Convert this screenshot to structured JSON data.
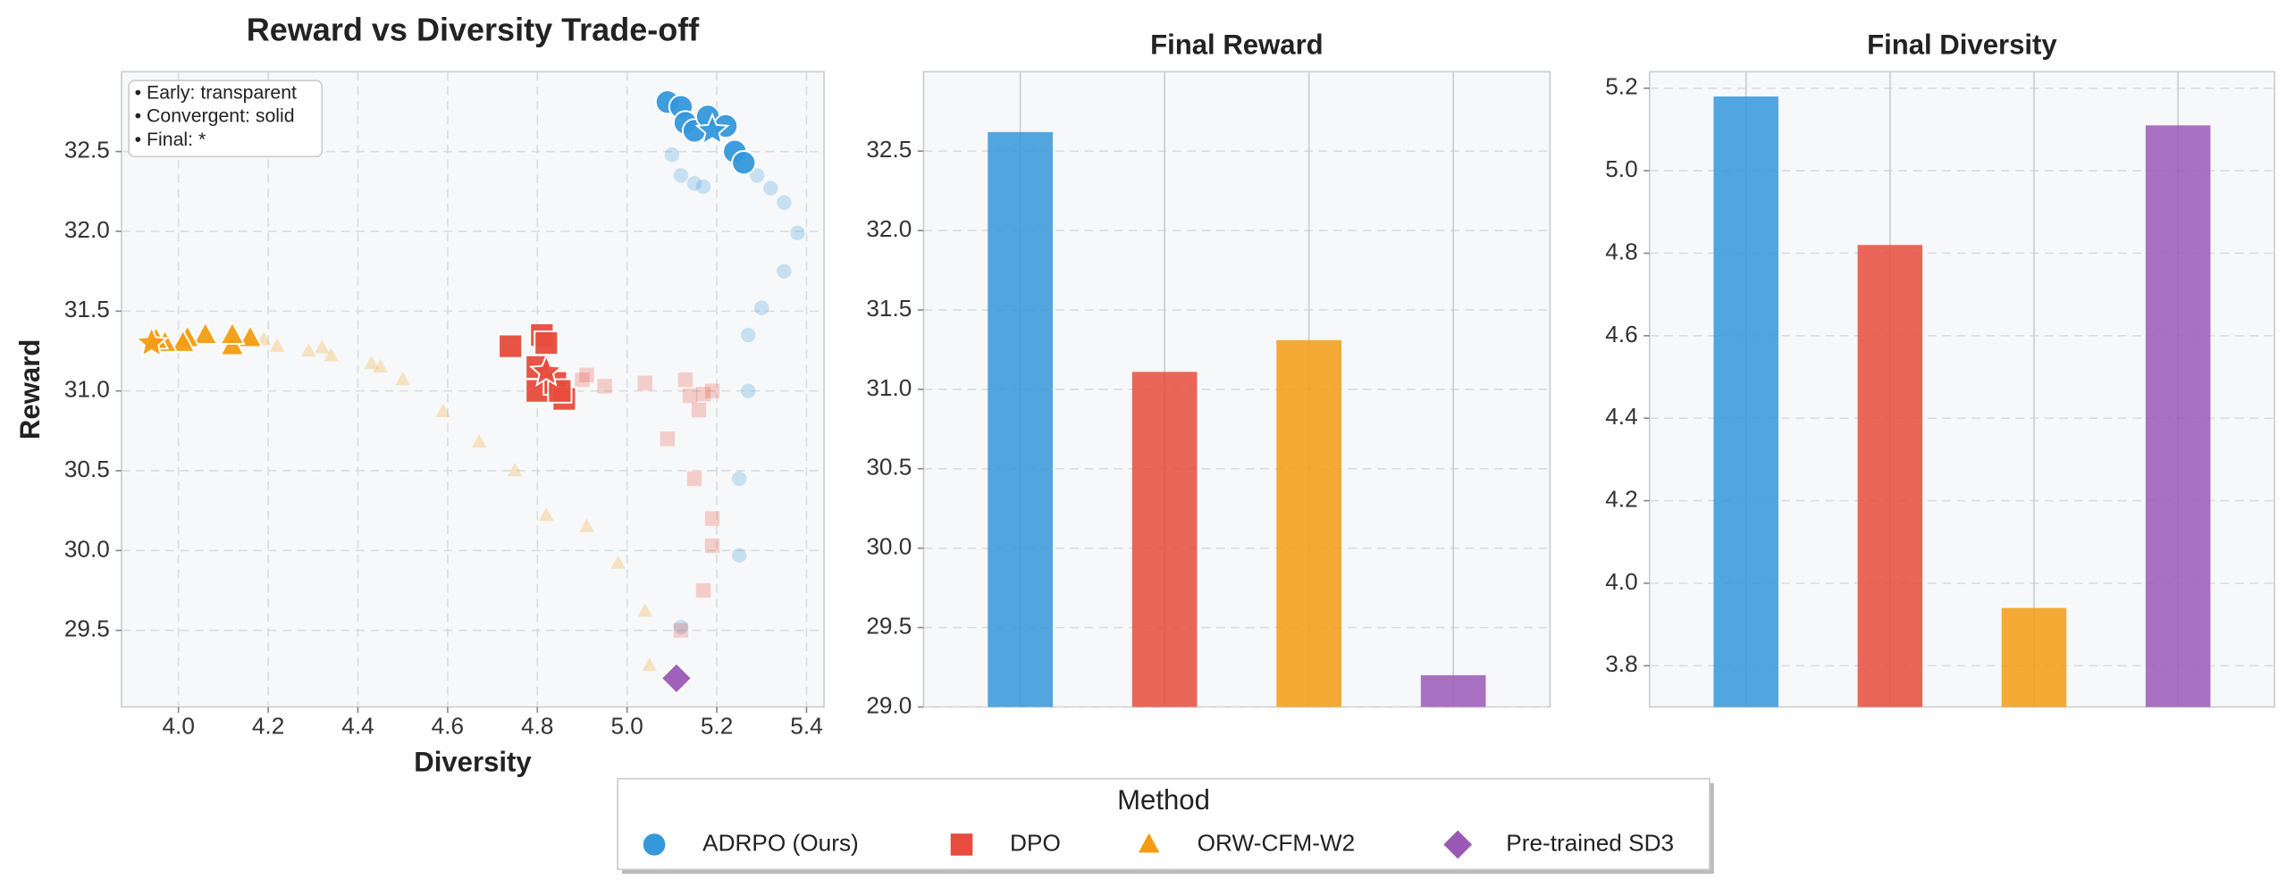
{
  "chart_data": [
    {
      "type": "scatter",
      "title": "Reward vs Diversity Trade-off",
      "x_label": "Diversity",
      "y_label": "Reward",
      "xlim": [
        3.873,
        5.439
      ],
      "ylim": [
        29.02,
        33.0
      ],
      "xticks": [
        {
          "value": 4.0,
          "label": "4.0"
        },
        4.2,
        4.4,
        4.6,
        4.8,
        {
          "value": 5.0,
          "label": "5.0"
        },
        5.2,
        5.4
      ],
      "yticks": [
        29.5,
        {
          "value": 30.0,
          "label": "30.0"
        },
        30.5,
        {
          "value": 31.0,
          "label": "31.0"
        },
        31.5,
        {
          "value": 32.0,
          "label": "32.0"
        },
        32.5
      ],
      "grid": true,
      "annotations": [
        "• Early: transparent",
        "• Convergent: solid",
        "• Final: *"
      ],
      "legend_title": "Method",
      "series": [
        {
          "name": "ADRPO (Ours)",
          "color": "#3498db",
          "marker": "circle",
          "x": [
            5.12,
            5.25,
            5.25,
            5.27,
            5.27,
            5.3,
            5.35,
            5.38,
            5.35,
            5.32,
            5.29,
            5.17,
            5.15,
            5.12,
            5.1,
            5.09,
            5.12,
            5.13,
            5.15,
            5.18,
            5.22,
            5.24,
            5.26,
            5.19
          ],
          "values": [
            29.52,
            29.97,
            30.45,
            31.0,
            31.35,
            31.52,
            31.75,
            31.99,
            32.18,
            32.27,
            32.35,
            32.28,
            32.3,
            32.35,
            32.48,
            32.81,
            32.78,
            32.68,
            32.63,
            32.72,
            32.66,
            32.5,
            32.43,
            32.63
          ]
        },
        {
          "name": "DPO",
          "color": "#e74c3c",
          "marker": "square",
          "x": [
            5.12,
            5.17,
            5.19,
            5.19,
            5.15,
            5.09,
            5.16,
            5.19,
            5.17,
            5.14,
            5.13,
            5.04,
            4.95,
            4.91,
            4.9,
            4.74,
            4.81,
            4.82,
            4.8,
            4.8,
            4.84,
            4.86,
            4.85,
            4.82
          ],
          "values": [
            29.5,
            29.75,
            30.03,
            30.2,
            30.45,
            30.7,
            30.88,
            31.0,
            30.98,
            30.97,
            31.07,
            31.05,
            31.03,
            31.1,
            31.07,
            31.28,
            31.35,
            31.3,
            31.15,
            31.0,
            31.05,
            30.95,
            31.0,
            31.12
          ]
        },
        {
          "name": "ORW-CFM-W2",
          "color": "#f39c12",
          "marker": "triangle",
          "x": [
            5.05,
            5.04,
            4.98,
            4.91,
            4.82,
            4.75,
            4.67,
            4.59,
            4.5,
            4.45,
            4.43,
            4.34,
            4.32,
            4.29,
            4.22,
            4.19,
            4.16,
            4.12,
            4.12,
            4.06,
            4.02,
            4.01,
            3.97,
            3.95,
            3.94
          ],
          "values": [
            29.28,
            29.62,
            29.92,
            30.15,
            30.22,
            30.5,
            30.68,
            30.87,
            31.07,
            31.15,
            31.17,
            31.22,
            31.27,
            31.25,
            31.28,
            31.32,
            31.33,
            31.28,
            31.35,
            31.35,
            31.33,
            31.3,
            31.3,
            31.32,
            31.3
          ]
        },
        {
          "name": "Pre-trained SD3",
          "color": "#9b59b6",
          "marker": "diamond",
          "x": [
            5.11
          ],
          "values": [
            29.2
          ]
        }
      ]
    },
    {
      "type": "bar",
      "title": "Final Reward",
      "categories": [
        null,
        null,
        null,
        null
      ],
      "values": [
        32.62,
        31.11,
        31.31,
        29.2
      ],
      "colors": [
        "#3498db",
        "#e74c3c",
        "#f39c12",
        "#9b59b6"
      ],
      "ylim": [
        29.0,
        33.0
      ],
      "yticks": [
        {
          "value": 29.0,
          "label": "29.0"
        },
        29.5,
        {
          "value": 30.0,
          "label": "30.0"
        },
        30.5,
        {
          "value": 31.0,
          "label": "31.0"
        },
        31.5,
        {
          "value": 32.0,
          "label": "32.0"
        },
        32.5
      ],
      "grid": true
    },
    {
      "type": "bar",
      "title": "Final Diversity",
      "categories": [
        null,
        null,
        null,
        null
      ],
      "values": [
        5.18,
        4.82,
        3.94,
        5.11
      ],
      "colors": [
        "#3498db",
        "#e74c3c",
        "#f39c12",
        "#9b59b6"
      ],
      "ylim": [
        3.7,
        5.24
      ],
      "yticks": [
        3.8,
        {
          "value": 4.0,
          "label": "4.0"
        },
        4.2,
        4.4,
        4.6,
        4.8,
        {
          "value": 5.0,
          "label": "5.0"
        },
        5.2
      ],
      "grid": true
    }
  ]
}
